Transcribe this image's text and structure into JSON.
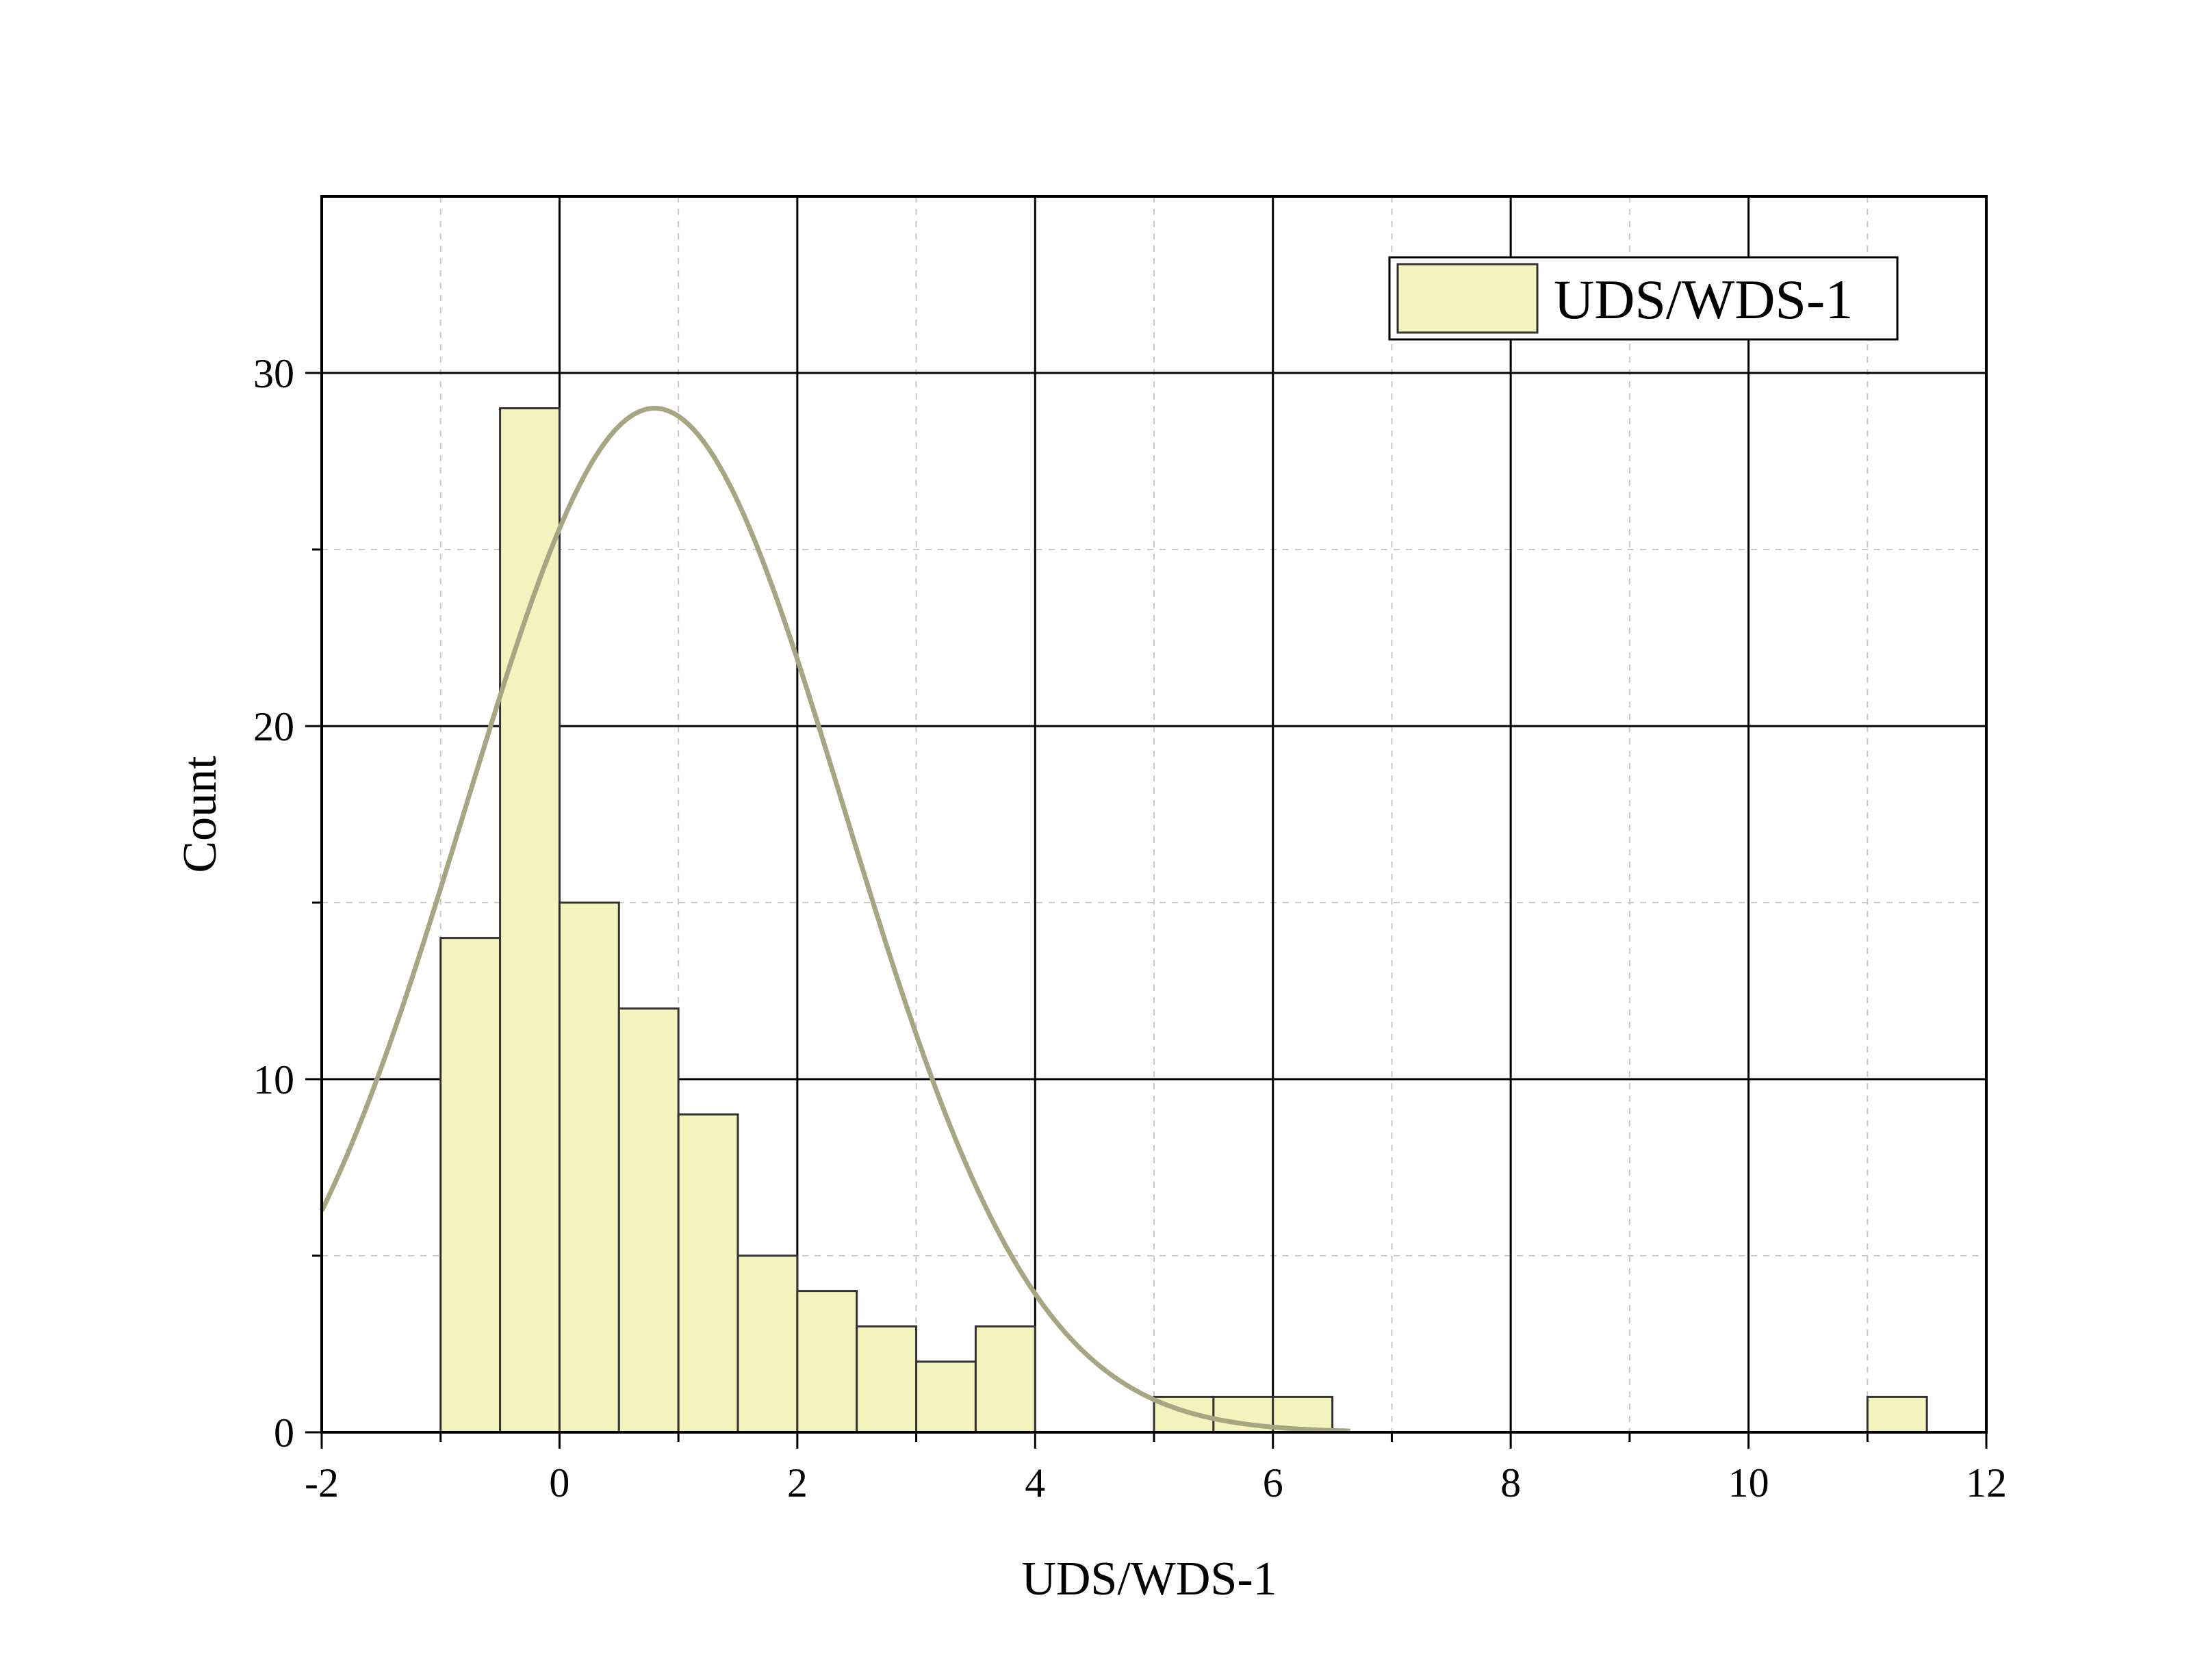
{
  "colors": {
    "bar_fill": "#f5f3bd",
    "bar_stroke": "#333333",
    "curve": "#a7a683",
    "major_grid": "#000000",
    "minor_grid": "#c8c8c8",
    "background": "#ffffff"
  },
  "chart_data": {
    "type": "bar",
    "subtype": "histogram",
    "title": "",
    "xlabel": "UDS/WDS-1",
    "ylabel": "Count",
    "xlim": [
      -2,
      12
    ],
    "ylim": [
      0,
      35
    ],
    "x_ticks": [
      "-2",
      "0",
      "2",
      "4",
      "6",
      "8",
      "10",
      "12"
    ],
    "y_ticks": [
      "0",
      "10",
      "20",
      "30"
    ],
    "grid": {
      "major": true,
      "minor": true,
      "minor_style": "dashed"
    },
    "legend": {
      "position": "top-right",
      "entries": [
        "UDS/WDS-1"
      ]
    },
    "series": [
      {
        "name": "UDS/WDS-1",
        "bin_width": 0.5,
        "bins": [
          {
            "start": -1.0,
            "end": -0.5,
            "count": 14
          },
          {
            "start": -0.5,
            "end": 0.0,
            "count": 29
          },
          {
            "start": 0.0,
            "end": 0.5,
            "count": 15
          },
          {
            "start": 0.5,
            "end": 1.0,
            "count": 12
          },
          {
            "start": 1.0,
            "end": 1.5,
            "count": 9
          },
          {
            "start": 1.5,
            "end": 2.0,
            "count": 5
          },
          {
            "start": 2.0,
            "end": 2.5,
            "count": 4
          },
          {
            "start": 2.5,
            "end": 3.0,
            "count": 3
          },
          {
            "start": 3.0,
            "end": 3.5,
            "count": 2
          },
          {
            "start": 3.5,
            "end": 4.0,
            "count": 3
          },
          {
            "start": 5.0,
            "end": 5.5,
            "count": 1
          },
          {
            "start": 5.5,
            "end": 6.0,
            "count": 1
          },
          {
            "start": 6.0,
            "end": 6.5,
            "count": 1
          },
          {
            "start": 11.0,
            "end": 11.5,
            "count": 1
          }
        ]
      }
    ],
    "fit_curve": {
      "type": "normal",
      "peak": 29,
      "mean": 0.8,
      "sd": 1.6,
      "x_range": [
        -2,
        6.65
      ]
    }
  }
}
